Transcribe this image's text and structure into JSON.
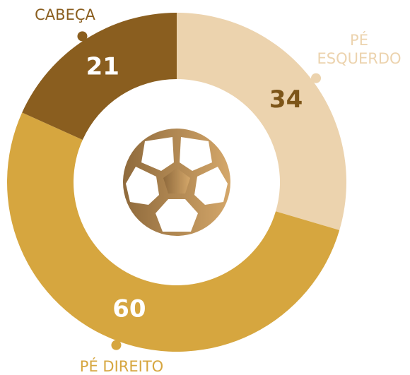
{
  "chart_data": {
    "type": "donut",
    "categories": [
      "PÉ ESQUERDO",
      "PÉ DIREITO",
      "CABEÇA"
    ],
    "values": [
      34,
      60,
      21
    ],
    "colors": [
      "#ecd3ae",
      "#d6a63f",
      "#8a5e1f"
    ]
  }
}
